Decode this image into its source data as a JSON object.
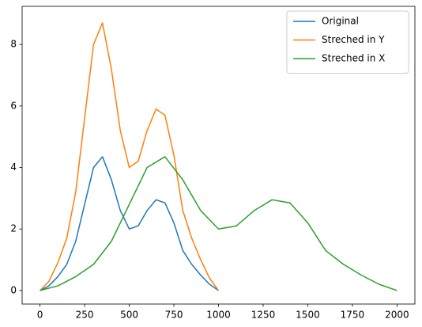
{
  "chart_data": {
    "type": "line",
    "series": [
      {
        "name": "Original",
        "color": "#1f77b4",
        "x": [
          0,
          50,
          100,
          150,
          200,
          250,
          300,
          350,
          400,
          450,
          500,
          550,
          600,
          650,
          700,
          750,
          800,
          850,
          900,
          950,
          1000
        ],
        "values": [
          0,
          0.15,
          0.45,
          0.85,
          1.6,
          2.8,
          4.0,
          4.35,
          3.6,
          2.6,
          2.0,
          2.1,
          2.6,
          2.95,
          2.85,
          2.2,
          1.3,
          0.85,
          0.5,
          0.2,
          0
        ]
      },
      {
        "name": "Streched in Y",
        "color": "#ff7f0e",
        "x": [
          0,
          50,
          100,
          150,
          200,
          250,
          300,
          350,
          400,
          450,
          500,
          550,
          600,
          650,
          700,
          750,
          800,
          850,
          900,
          950,
          1000
        ],
        "values": [
          0,
          0.3,
          0.9,
          1.7,
          3.2,
          5.6,
          8.0,
          8.7,
          7.2,
          5.2,
          4.0,
          4.2,
          5.2,
          5.9,
          5.7,
          4.4,
          2.6,
          1.7,
          1.0,
          0.4,
          0
        ]
      },
      {
        "name": "Streched in X",
        "color": "#2ca02c",
        "x": [
          0,
          100,
          200,
          300,
          400,
          500,
          600,
          700,
          800,
          900,
          1000,
          1100,
          1200,
          1300,
          1400,
          1500,
          1600,
          1700,
          1800,
          1900,
          2000
        ],
        "values": [
          0,
          0.15,
          0.45,
          0.85,
          1.6,
          2.8,
          4.0,
          4.35,
          3.6,
          2.6,
          2.0,
          2.1,
          2.6,
          2.95,
          2.85,
          2.2,
          1.3,
          0.85,
          0.5,
          0.2,
          0
        ]
      }
    ],
    "xlim": [
      -100,
      2100
    ],
    "xticks": [
      0,
      250,
      500,
      750,
      1000,
      1250,
      1500,
      1750,
      2000
    ],
    "ylim": [
      -0.44,
      9.24
    ],
    "yticks": [
      0,
      2,
      4,
      6,
      8
    ],
    "legend": "upper right",
    "grid": false
  }
}
